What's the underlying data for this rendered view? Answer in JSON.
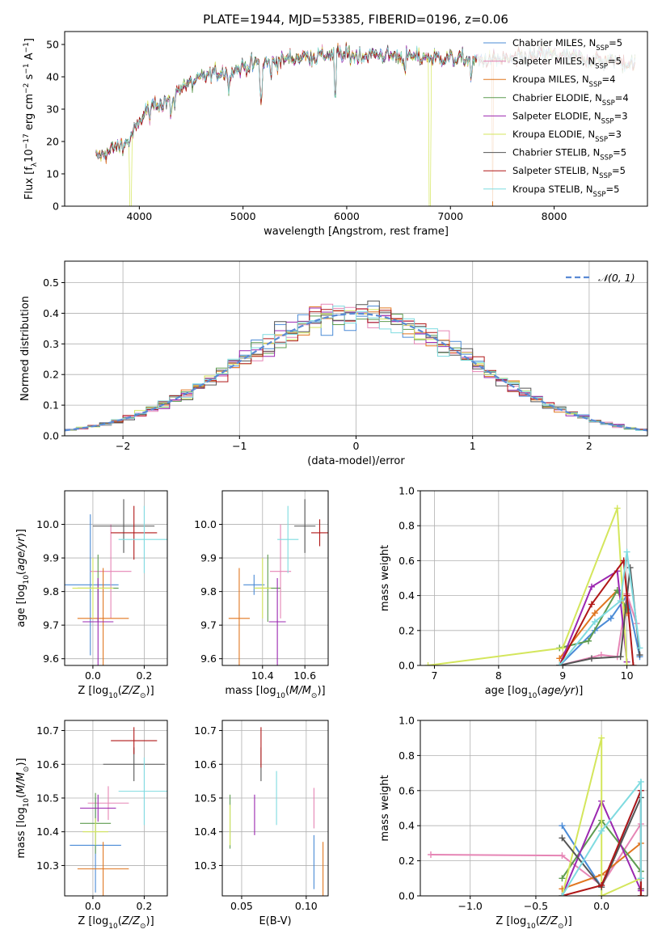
{
  "figure": {
    "title": "PLATE=1944, MJD=53385, FIBERID=0196, z=0.06"
  },
  "fit_models": [
    {
      "name": "Chabrier MILES",
      "nssp": "5",
      "color": "#4b8bd6"
    },
    {
      "name": "Salpeter MILES",
      "nssp": "5",
      "color": "#e685b5"
    },
    {
      "name": "Kroupa MILES",
      "nssp": "4",
      "color": "#e0761f"
    },
    {
      "name": "Chabrier ELODIE",
      "nssp": "4",
      "color": "#5e9c50"
    },
    {
      "name": "Salpeter ELODIE",
      "nssp": "3",
      "color": "#9b27b0"
    },
    {
      "name": "Kroupa ELODIE",
      "nssp": "3",
      "color": "#d4e65c"
    },
    {
      "name": "Chabrier STELIB",
      "nssp": "5",
      "color": "#555555"
    },
    {
      "name": "Salpeter STELIB",
      "nssp": "5",
      "color": "#b01717"
    },
    {
      "name": "Kroupa STELIB",
      "nssp": "5",
      "color": "#7fdbe0"
    }
  ],
  "chart_data": [
    {
      "id": "spectrum",
      "type": "line",
      "title": "PLATE=1944, MJD=53385, FIBERID=0196, z=0.06",
      "xlabel": "wavelength [Angstrom, rest frame]",
      "ylabel": "Flux [f_λ 10^-17 erg cm^-2 s^-1 A^-1]",
      "xlim": [
        3280,
        8900
      ],
      "ylim": [
        0,
        54
      ],
      "xticks": [
        4000,
        5000,
        6000,
        7000,
        8000
      ],
      "yticks": [
        0,
        10,
        20,
        30,
        40,
        50
      ],
      "grid": false,
      "legend_placement": "right",
      "continuum": {
        "x": [
          3580,
          3700,
          3900,
          4000,
          4100,
          4200,
          4300,
          4400,
          4500,
          4700,
          4900,
          5100,
          5300,
          5500,
          5700,
          5900,
          6100,
          6300,
          6500,
          6700,
          6900,
          7100,
          7300,
          7600,
          7900,
          8200,
          8500,
          8780
        ],
        "y": [
          15,
          17,
          20,
          26,
          31,
          32,
          33,
          37,
          38,
          41,
          42,
          44,
          44.5,
          46,
          46.5,
          47,
          46.5,
          47,
          46.5,
          46,
          46,
          45.5,
          45,
          45.5,
          47,
          46,
          45,
          44
        ]
      },
      "absorption_features": [
        {
          "x": 3933,
          "y": 28
        },
        {
          "x": 3968,
          "y": 25
        },
        {
          "x": 4102,
          "y": 26
        },
        {
          "x": 4226,
          "y": 28
        },
        {
          "x": 4304,
          "y": 26
        },
        {
          "x": 4340,
          "y": 30
        },
        {
          "x": 4861,
          "y": 35
        },
        {
          "x": 5175,
          "y": 31
        },
        {
          "x": 5270,
          "y": 38
        },
        {
          "x": 5890,
          "y": 32
        },
        {
          "x": 6563,
          "y": 40
        },
        {
          "x": 7200,
          "y": 38
        }
      ],
      "dropouts": [
        {
          "x": 3915,
          "model": "Kroupa ELODIE"
        },
        {
          "x": 6803,
          "model": "Kroupa ELODIE"
        },
        {
          "x": 7410,
          "model": "Kroupa MILES"
        }
      ]
    },
    {
      "id": "residuals",
      "type": "area",
      "xlabel": "(data-model)/error",
      "ylabel": "Normed distribution",
      "xlim": [
        -2.5,
        2.5
      ],
      "ylim": [
        0,
        0.57
      ],
      "xticks": [
        -2,
        -1,
        0,
        1,
        2
      ],
      "xtick_labels": [
        "−2",
        "−1",
        "0",
        "1",
        "2"
      ],
      "yticks": [
        0.0,
        0.1,
        0.2,
        0.3,
        0.4,
        0.5
      ],
      "grid": true,
      "legend_placement": "top-right",
      "reference": {
        "label": "𝒩(0, 1)",
        "color": "#5a8ad4",
        "mean": 0,
        "sigma": 1
      },
      "bin_width": 0.1
    },
    {
      "id": "age-vs-Z",
      "type": "scatter",
      "xlabel": "Z [log10(Z/Z⊙)]",
      "ylabel": "age  [log10(age/yr)]",
      "xlim": [
        -0.11,
        0.29
      ],
      "ylim": [
        9.58,
        10.1
      ],
      "xticks": [
        0.0,
        0.2
      ],
      "yticks": [
        9.6,
        9.7,
        9.8,
        9.9,
        10.0
      ],
      "grid": true,
      "points": [
        {
          "x": -0.01,
          "y": 9.82,
          "xerr": 0.11,
          "yerr": 0.21
        },
        {
          "x": 0.07,
          "y": 9.86,
          "xerr": 0.08,
          "yerr": 0.14
        },
        {
          "x": 0.04,
          "y": 9.72,
          "xerr": 0.1,
          "yerr": 0.15
        },
        {
          "x": 0.02,
          "y": 9.81,
          "xerr": 0.08,
          "yerr": 0.1
        },
        {
          "x": 0.02,
          "y": 9.71,
          "xerr": 0.06,
          "yerr": 0.13
        },
        {
          "x": 0.0,
          "y": 9.81,
          "xerr": 0.08,
          "yerr": 0.09
        },
        {
          "x": 0.12,
          "y": 9.995,
          "xerr": 0.12,
          "yerr": 0.08
        },
        {
          "x": 0.16,
          "y": 9.975,
          "xerr": 0.09,
          "yerr": 0.08
        },
        {
          "x": 0.2,
          "y": 9.955,
          "xerr": 0.1,
          "yerr": 0.1
        }
      ]
    },
    {
      "id": "age-vs-mass",
      "type": "scatter",
      "xlabel": "mass [log10(M/M⊙)]",
      "ylabel": "",
      "xlim": [
        10.21,
        10.71
      ],
      "ylim": [
        9.58,
        10.1
      ],
      "xticks": [
        10.4,
        10.6
      ],
      "yticks": [
        9.6,
        9.7,
        9.8,
        9.9,
        10.0
      ],
      "grid": true,
      "points": [
        {
          "x": 10.36,
          "y": 9.82,
          "xerr": 0.05,
          "yerr": 0.03
        },
        {
          "x": 10.485,
          "y": 9.86,
          "xerr": 0.05,
          "yerr": 0.14
        },
        {
          "x": 10.29,
          "y": 9.72,
          "xerr": 0.05,
          "yerr": 0.15
        },
        {
          "x": 10.425,
          "y": 9.81,
          "xerr": 0.06,
          "yerr": 0.1
        },
        {
          "x": 10.47,
          "y": 9.71,
          "xerr": 0.04,
          "yerr": 0.13
        },
        {
          "x": 10.4,
          "y": 9.81,
          "xerr": 0.04,
          "yerr": 0.09
        },
        {
          "x": 10.6,
          "y": 9.995,
          "xerr": 0.05,
          "yerr": 0.08
        },
        {
          "x": 10.67,
          "y": 9.975,
          "xerr": 0.04,
          "yerr": 0.04
        },
        {
          "x": 10.52,
          "y": 9.955,
          "xerr": 0.05,
          "yerr": 0.1
        }
      ]
    },
    {
      "id": "mass-weight-vs-age",
      "type": "line",
      "xlabel": "age  [log10(age/yr)]",
      "ylabel": "mass weight",
      "xlim": [
        6.78,
        10.32
      ],
      "ylim": [
        0,
        1
      ],
      "xticks": [
        7,
        8,
        9,
        10
      ],
      "yticks": [
        0.0,
        0.2,
        0.4,
        0.6,
        0.8,
        1.0
      ],
      "grid": true,
      "series": [
        {
          "x": [
            8.95,
            9.5,
            9.75,
            10.0,
            10.2
          ],
          "y": [
            0.0,
            0.2,
            0.27,
            0.4,
            0.05
          ]
        },
        {
          "x": [
            8.95,
            9.6,
            9.85,
            10.0,
            10.15
          ],
          "y": [
            0.0,
            0.06,
            0.05,
            0.41,
            0.24
          ]
        },
        {
          "x": [
            8.95,
            9.5,
            9.85,
            10.0
          ],
          "y": [
            0.04,
            0.3,
            0.43,
            0.3
          ]
        },
        {
          "x": [
            8.95,
            9.4,
            9.85,
            10.0
          ],
          "y": [
            0.1,
            0.14,
            0.43,
            0.32
          ]
        },
        {
          "x": [
            8.95,
            9.45,
            9.85,
            10.0
          ],
          "y": [
            0.0,
            0.45,
            0.54,
            0.02
          ]
        },
        {
          "x": [
            6.9,
            9.0,
            9.85,
            10.0
          ],
          "y": [
            0.0,
            0.1,
            0.9,
            0.0
          ]
        },
        {
          "x": [
            8.95,
            9.45,
            9.9,
            10.05,
            10.2
          ],
          "y": [
            0.0,
            0.04,
            0.05,
            0.56,
            0.06
          ]
        },
        {
          "x": [
            8.95,
            9.45,
            9.95,
            10.0,
            10.1
          ],
          "y": [
            0.0,
            0.35,
            0.6,
            0.4,
            0.0
          ]
        },
        {
          "x": [
            8.95,
            9.5,
            9.9,
            10.0,
            10.2
          ],
          "y": [
            0.0,
            0.25,
            0.37,
            0.65,
            0.1
          ]
        }
      ]
    },
    {
      "id": "mass-vs-Z",
      "type": "scatter",
      "xlabel": "Z [log10(Z/Z⊙)]",
      "ylabel": "mass [log10(M/M⊙)]",
      "xlim": [
        -0.11,
        0.29
      ],
      "ylim": [
        10.21,
        10.73
      ],
      "xticks": [
        0.0,
        0.2
      ],
      "yticks": [
        10.3,
        10.4,
        10.5,
        10.6,
        10.7
      ],
      "grid": true,
      "points": [
        {
          "x": 0.01,
          "y": 10.36,
          "xerr": 0.1,
          "yerr": 0.14
        },
        {
          "x": 0.06,
          "y": 10.485,
          "xerr": 0.08,
          "yerr": 0.05
        },
        {
          "x": 0.04,
          "y": 10.29,
          "xerr": 0.1,
          "yerr": 0.08
        },
        {
          "x": 0.01,
          "y": 10.425,
          "xerr": 0.06,
          "yerr": 0.09
        },
        {
          "x": 0.02,
          "y": 10.47,
          "xerr": 0.07,
          "yerr": 0.04
        },
        {
          "x": 0.01,
          "y": 10.4,
          "xerr": 0.05,
          "yerr": 0.04
        },
        {
          "x": 0.16,
          "y": 10.6,
          "xerr": 0.12,
          "yerr": 0.05
        },
        {
          "x": 0.16,
          "y": 10.67,
          "xerr": 0.09,
          "yerr": 0.04
        },
        {
          "x": 0.2,
          "y": 10.52,
          "xerr": 0.1,
          "yerr": 0.1
        }
      ]
    },
    {
      "id": "mass-vs-ebv",
      "type": "scatter",
      "xlabel": "E(B-V)",
      "ylabel": "",
      "xlim": [
        0.035,
        0.117
      ],
      "ylim": [
        10.21,
        10.73
      ],
      "xticks": [
        0.05,
        0.1
      ],
      "yticks": [
        10.3,
        10.4,
        10.5,
        10.6,
        10.7
      ],
      "grid": true,
      "points": [
        {
          "x": 0.106,
          "y": 10.31,
          "xerr": 0,
          "yerr": 0.08
        },
        {
          "x": 0.106,
          "y": 10.47,
          "xerr": 0,
          "yerr": 0.06
        },
        {
          "x": 0.113,
          "y": 10.27,
          "xerr": 0,
          "yerr": 0.1
        },
        {
          "x": 0.041,
          "y": 10.43,
          "xerr": 0,
          "yerr": 0.08
        },
        {
          "x": 0.06,
          "y": 10.45,
          "xerr": 0,
          "yerr": 0.06
        },
        {
          "x": 0.041,
          "y": 10.42,
          "xerr": 0,
          "yerr": 0.06
        },
        {
          "x": 0.065,
          "y": 10.6,
          "xerr": 0,
          "yerr": 0.05
        },
        {
          "x": 0.065,
          "y": 10.65,
          "xerr": 0,
          "yerr": 0.06
        },
        {
          "x": 0.077,
          "y": 10.5,
          "xerr": 0,
          "yerr": 0.08
        }
      ]
    },
    {
      "id": "mass-weight-vs-Z",
      "type": "line",
      "xlabel": "Z [log10(Z/Z⊙)]",
      "ylabel": "mass weight",
      "xlim": [
        -1.38,
        0.35
      ],
      "ylim": [
        0,
        1
      ],
      "xticks": [
        -1.0,
        -0.5,
        0.0
      ],
      "xtick_labels": [
        "−1.0",
        "−0.5",
        "0.0"
      ],
      "yticks": [
        0.0,
        0.2,
        0.4,
        0.6,
        0.8,
        1.0
      ],
      "grid": true,
      "series": [
        {
          "x": [
            -0.3,
            0.0,
            0.3,
            0.3
          ],
          "y": [
            0.4,
            0.05,
            0.6,
            0.0
          ]
        },
        {
          "x": [
            -1.3,
            -0.3,
            0.0,
            0.3
          ],
          "y": [
            0.235,
            0.23,
            0.06,
            0.41
          ]
        },
        {
          "x": [
            -0.3,
            0.0,
            0.3,
            0.3
          ],
          "y": [
            0.04,
            0.12,
            0.3,
            0.0
          ]
        },
        {
          "x": [
            -0.3,
            0.0,
            0.3
          ],
          "y": [
            0.1,
            0.43,
            0.14
          ]
        },
        {
          "x": [
            -0.3,
            0.0,
            0.3
          ],
          "y": [
            0.0,
            0.54,
            0.03
          ]
        },
        {
          "x": [
            -0.3,
            0.0,
            0.0,
            0.3
          ],
          "y": [
            0.0,
            0.9,
            0.0,
            0.1
          ]
        },
        {
          "x": [
            -0.3,
            0.0,
            0.3,
            0.3
          ],
          "y": [
            0.33,
            0.05,
            0.56,
            0.04
          ]
        },
        {
          "x": [
            -0.3,
            0.0,
            0.3,
            0.3
          ],
          "y": [
            0.0,
            0.06,
            0.6,
            0.0
          ]
        },
        {
          "x": [
            -0.3,
            0.0,
            0.3,
            0.3
          ],
          "y": [
            0.0,
            0.37,
            0.65,
            0.1
          ]
        }
      ]
    }
  ]
}
